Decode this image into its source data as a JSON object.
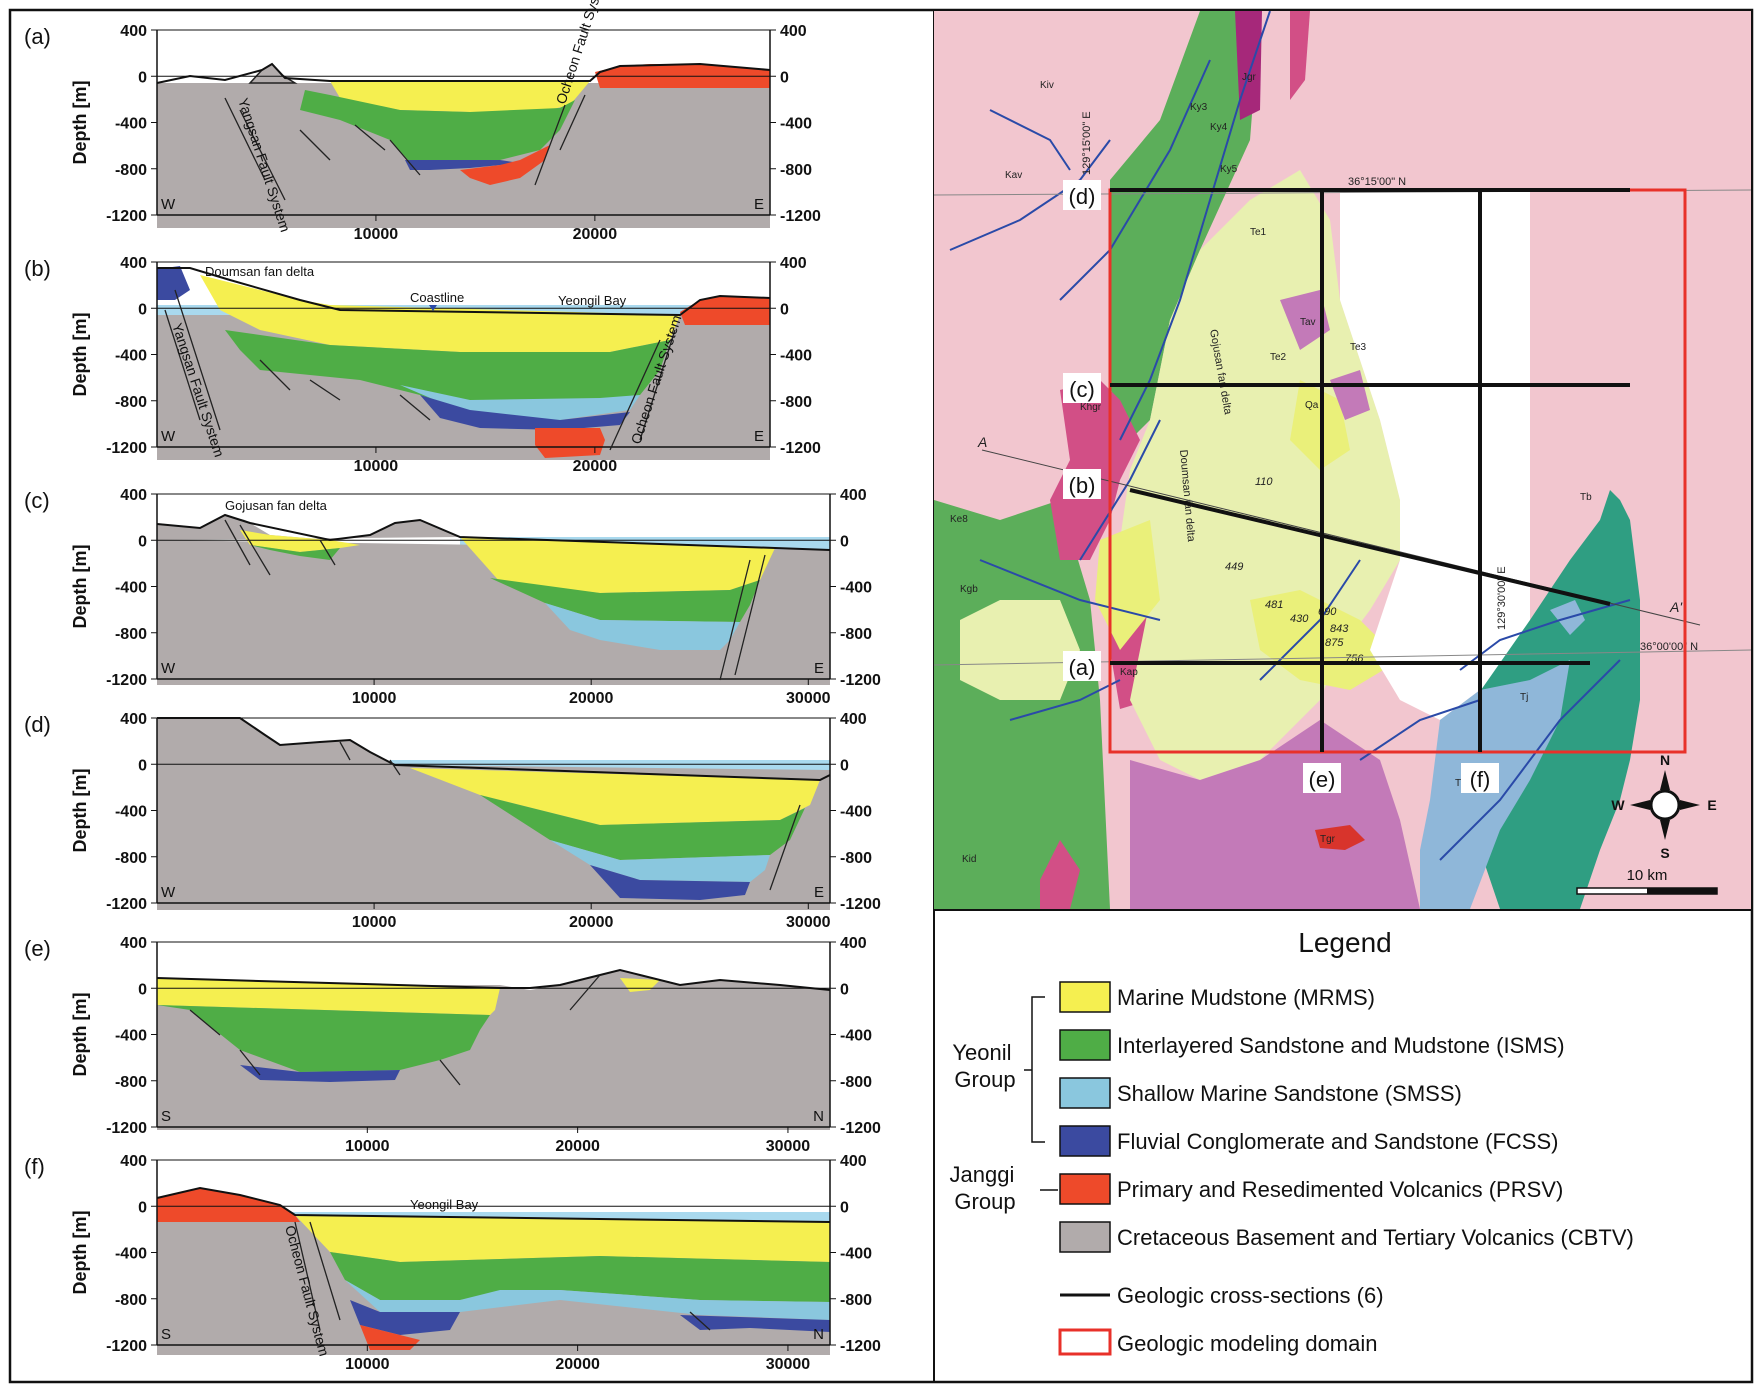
{
  "panels": [
    {
      "id": "a",
      "letter": "(a)",
      "x_max": 28000,
      "x_ticks": [
        10000,
        20000
      ],
      "left": "W",
      "right": "E",
      "annotations": [
        "Yangsan Fault System",
        "Ocheon Fault System"
      ]
    },
    {
      "id": "b",
      "letter": "(b)",
      "x_max": 28000,
      "x_ticks": [
        10000,
        20000
      ],
      "left": "W",
      "right": "E",
      "annotations": [
        "Doumsan fan delta",
        "Coastline",
        "Yeongil Bay",
        "Yangsan Fault System",
        "Ocheon Fault System"
      ]
    },
    {
      "id": "c",
      "letter": "(c)",
      "x_max": 31000,
      "x_ticks": [
        10000,
        20000,
        30000
      ],
      "left": "W",
      "right": "E",
      "annotations": [
        "Gojusan fan delta"
      ]
    },
    {
      "id": "d",
      "letter": "(d)",
      "x_max": 31000,
      "x_ticks": [
        10000,
        20000,
        30000
      ],
      "left": "W",
      "right": "E",
      "annotations": []
    },
    {
      "id": "e",
      "letter": "(e)",
      "x_max": 32000,
      "x_ticks": [
        10000,
        20000,
        30000
      ],
      "left": "S",
      "right": "N",
      "annotations": []
    },
    {
      "id": "f",
      "letter": "(f)",
      "x_max": 32000,
      "x_ticks": [
        10000,
        20000,
        30000
      ],
      "left": "S",
      "right": "N",
      "annotations": [
        "Yeongil Bay",
        "Ocheon Fault System"
      ]
    }
  ],
  "axis": {
    "ylabel": "Depth [m]",
    "y_ticks": [
      400,
      0,
      -400,
      -800,
      -1200
    ],
    "y_range": [
      -1200,
      400
    ]
  },
  "map": {
    "coords": [
      "129°15'00\" E",
      "36°15'00\" N",
      "129°30'00\" E",
      "36°00'00\" N"
    ],
    "line_labels": [
      "(d)",
      "(c)",
      "(b)",
      "(a)",
      "(e)",
      "(f)"
    ],
    "profile_end_labels": [
      "A",
      "A'"
    ],
    "units": [
      "Kiv",
      "Kav",
      "Ke8",
      "Ky3",
      "Ky4",
      "Ky5",
      "Tav",
      "Jgr",
      "Te1",
      "Te2",
      "Te3",
      "Khgr",
      "Qa",
      "Kgb",
      "Kap",
      "Kid",
      "Tb",
      "Tj",
      "Tbv",
      "Tgr"
    ],
    "wells": [
      "110",
      "449",
      "481",
      "430",
      "690",
      "843",
      "875",
      "756"
    ],
    "fan_labels": [
      "Gojusan fan delta",
      "Doumsan fan delta"
    ],
    "compass": {
      "n": "N",
      "e": "E",
      "s": "S",
      "w": "W"
    },
    "scale": "10 km"
  },
  "legend": {
    "title": "Legend",
    "group1": "Yeonil Group",
    "group1_lines": [
      "Yeonil",
      "Group"
    ],
    "group2": "Janggi Group",
    "group2_lines": [
      "Janggi",
      "Group"
    ],
    "items": [
      {
        "label": "Marine Mudstone (MRMS)",
        "color": "#f5ef50"
      },
      {
        "label": "Interlayered Sandstone and Mudstone (ISMS)",
        "color": "#4fad46"
      },
      {
        "label": "Shallow Marine Sandstone (SMSS)",
        "color": "#8ac7de"
      },
      {
        "label": "Fluvial Conglomerate and Sandstone (FCSS)",
        "color": "#3b4aa0"
      },
      {
        "label": "Primary and Resedimented Volcanics (PRSV)",
        "color": "#ee4a2a"
      },
      {
        "label": "Cretaceous Basement and Tertiary Volcanics (CBTV)",
        "color": "#b1abab"
      }
    ],
    "line_item": "Geologic cross-sections (6)",
    "box_item": "Geologic modeling domain"
  },
  "colors": {
    "mrms": "#f5ef50",
    "isms": "#4fad46",
    "smss": "#8ac7de",
    "fcss": "#3b4aa0",
    "prsv": "#ee4a2a",
    "cbtv": "#b1abab",
    "sea": "#a9d9ee",
    "domain": "#e8312a",
    "map_pink": "#f2c6cf",
    "map_green": "#5cae5a",
    "map_magenta": "#d24f86",
    "map_yellowgreen": "#e8f0b0",
    "map_purple": "#c37ab8",
    "map_teal": "#2f9e82",
    "map_blue": "#8fb7d9"
  }
}
